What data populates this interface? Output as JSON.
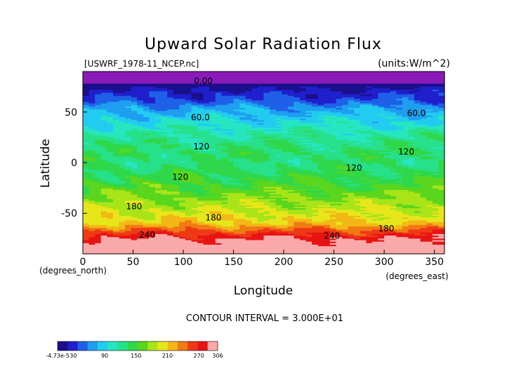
{
  "chart_data": {
    "type": "heatmap",
    "title": "Upward Solar Radiation Flux",
    "file_label": "[USWRF_1978-11_NCEP.nc]",
    "units_label": "(units:W/m^2)",
    "xlabel": "Longitude",
    "ylabel": "Latitude",
    "x_unit_label": "(degrees_east)",
    "y_unit_label": "(degrees_north)",
    "xlim": [
      0,
      360
    ],
    "ylim": [
      -90,
      90
    ],
    "x_ticks": [
      0,
      50,
      100,
      150,
      200,
      250,
      300,
      350
    ],
    "y_ticks": [
      50,
      0,
      -50
    ],
    "contour_interval_text": "CONTOUR INTERVAL = 3.000E+01",
    "contour_labels": [
      {
        "text": "0.00",
        "lon": 120,
        "lat": 78
      },
      {
        "text": "60.0",
        "lon": 117,
        "lat": 42
      },
      {
        "text": "60.0",
        "lon": 332,
        "lat": 46
      },
      {
        "text": "120",
        "lon": 118,
        "lat": 13
      },
      {
        "text": "120",
        "lon": 322,
        "lat": 8
      },
      {
        "text": "120",
        "lon": 97,
        "lat": -17
      },
      {
        "text": "120",
        "lon": 270,
        "lat": -8
      },
      {
        "text": "180",
        "lon": 51,
        "lat": -46
      },
      {
        "text": "180",
        "lon": 130,
        "lat": -57
      },
      {
        "text": "180",
        "lon": 302,
        "lat": -68
      },
      {
        "text": "240",
        "lon": 64,
        "lat": -74
      },
      {
        "text": "240",
        "lon": 248,
        "lat": -75
      }
    ],
    "latitude_profile": [
      {
        "lat": 90,
        "value": 0
      },
      {
        "lat": 78,
        "value": 0
      },
      {
        "lat": 75,
        "value": 10
      },
      {
        "lat": 68,
        "value": 30
      },
      {
        "lat": 60,
        "value": 45
      },
      {
        "lat": 55,
        "value": 65
      },
      {
        "lat": 48,
        "value": 80
      },
      {
        "lat": 40,
        "value": 95
      },
      {
        "lat": 30,
        "value": 112
      },
      {
        "lat": 20,
        "value": 125
      },
      {
        "lat": 10,
        "value": 135
      },
      {
        "lat": 0,
        "value": 130
      },
      {
        "lat": -10,
        "value": 140
      },
      {
        "lat": -20,
        "value": 150
      },
      {
        "lat": -30,
        "value": 165
      },
      {
        "lat": -40,
        "value": 180
      },
      {
        "lat": -50,
        "value": 195
      },
      {
        "lat": -60,
        "value": 215
      },
      {
        "lat": -65,
        "value": 240
      },
      {
        "lat": -70,
        "value": 265
      },
      {
        "lat": -75,
        "value": 285
      },
      {
        "lat": -80,
        "value": 300
      },
      {
        "lat": -90,
        "value": 306
      }
    ],
    "colorbar": {
      "tick_labels": [
        "-4.73e-5",
        "30",
        "90",
        "150",
        "210",
        "270",
        "306"
      ],
      "tick_values": [
        0,
        30,
        90,
        150,
        210,
        270,
        306
      ],
      "min": 0,
      "max": 306,
      "colors": [
        "#1a0f8c",
        "#1f1fcc",
        "#1e60e8",
        "#1f9ef0",
        "#22ccf0",
        "#26e6c2",
        "#27e08a",
        "#2fd84a",
        "#5ad61e",
        "#a8e418",
        "#e6e61a",
        "#f3b815",
        "#f07a14",
        "#ee3a14",
        "#e81414",
        "#f9a9a9"
      ]
    },
    "colors": {
      "polar_band": "#8a1ab8",
      "deep_blue": "#1a1a9a",
      "blue": "#1f45e0",
      "light_blue": "#22c0f2",
      "cyan": "#2ad9d0",
      "green_light": "#40e070",
      "green": "#36d23a",
      "yellow_green": "#b8e618",
      "yellow": "#f0e61a",
      "orange": "#f08a14",
      "red": "#e81818",
      "pink": "#f6b3b3"
    }
  }
}
